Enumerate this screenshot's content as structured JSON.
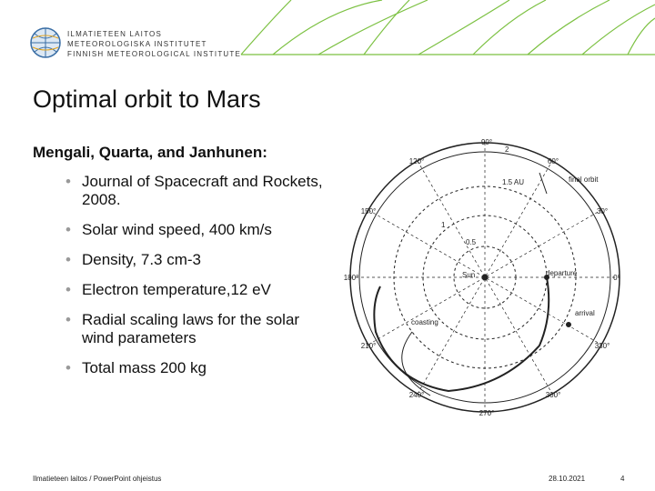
{
  "header": {
    "logo_lines": [
      "ILMATIETEEN LAITOS",
      "METEOROLOGISKA INSTITUTET",
      "FINNISH METEOROLOGICAL INSTITUTE"
    ]
  },
  "title": "Optimal orbit to Mars",
  "subtitle": "Mengali, Quarta, and Janhunen:",
  "bullets": [
    "Journal of Spacecraft and Rockets, 2008.",
    "Solar wind speed, 400 km/s",
    "Density, 7.3 cm-3",
    "Electron temperature,12 eV",
    "Radial scaling laws for  the solar wind parameters",
    "Total mass 200 kg"
  ],
  "diagram": {
    "angles": [
      "90°",
      "60°",
      "30°",
      "0°",
      "330°",
      "300°",
      "270°",
      "240°",
      "210°",
      "180°",
      "150°",
      "120°"
    ],
    "labels": {
      "outer": "2",
      "middle": "1.5 AU",
      "final": "final orbit",
      "inner": "0.5",
      "sun": "Sun",
      "departure": "departure",
      "arrival": "arrival",
      "coasting": "coasting",
      "one": "1"
    }
  },
  "footer": {
    "left": "Ilmatieteen laitos / PowerPoint ohjeistus",
    "date": "28.10.2021",
    "page": "4"
  }
}
